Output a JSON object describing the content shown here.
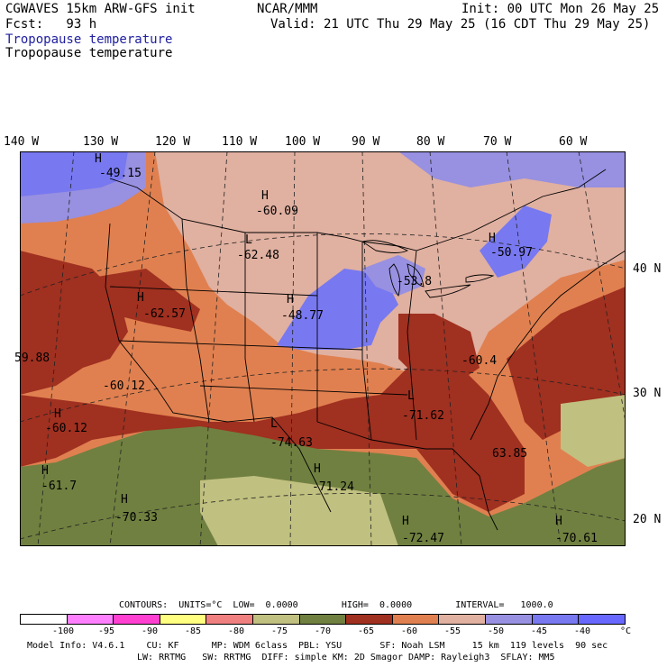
{
  "header": {
    "model": "CGWAVES 15km ARW-GFS init",
    "center": "NCAR/MMM",
    "init": "Init: 00 UTC Mon 26 May 25",
    "fcst": "Fcst:   93 h",
    "valid": "Valid: 21 UTC Thu 29 May 25 (16 CDT Thu 29 May 25)",
    "field_title_1": "Tropopause temperature",
    "field_title_2": "Tropopause temperature"
  },
  "map": {
    "lon_labels": [
      "140 W",
      "130 W",
      "120 W",
      "110 W",
      "100 W",
      "90 W",
      "80 W",
      "70 W",
      "60 W"
    ],
    "lat_labels": [
      "40 N",
      "30 N",
      "20 N"
    ],
    "extrema": [
      {
        "sym": "H",
        "value": "-60.09"
      },
      {
        "sym": "L",
        "value": "-62.48"
      },
      {
        "sym": "H",
        "value": "-50.97"
      },
      {
        "sym": "H",
        "value": "-62.57"
      },
      {
        "sym": "H",
        "value": "-48.77"
      },
      {
        "sym": "",
        "value": "-53.8"
      },
      {
        "sym": "",
        "value": "59.88"
      },
      {
        "sym": "",
        "value": "-60.12"
      },
      {
        "sym": "H",
        "value": "-60.12"
      },
      {
        "sym": "",
        "value": "-60.4"
      },
      {
        "sym": "L",
        "value": "-71.62"
      },
      {
        "sym": "L",
        "value": "-74.63"
      },
      {
        "sym": "H",
        "value": "-71.24"
      },
      {
        "sym": "",
        "value": "63.85"
      },
      {
        "sym": "H",
        "value": "-61.7"
      },
      {
        "sym": "H",
        "value": "-70.33"
      },
      {
        "sym": "H",
        "value": "-72.47"
      },
      {
        "sym": "H",
        "value": "-70.61"
      },
      {
        "sym": "H",
        "value": "-49.15"
      }
    ]
  },
  "contours": {
    "text": "CONTOURS:  UNITS=°C  LOW=  0.0000        HIGH=  0.0000        INTERVAL=   1000.0"
  },
  "colorbar": {
    "colors": [
      "#ffffff",
      "#ff80ff",
      "#ff40d0",
      "#ffff80",
      "#f08080",
      "#c0c080",
      "#708040",
      "#506030",
      "#a03020",
      "#e08050",
      "#e0b0a0",
      "#9890e0",
      "#7878f0",
      "#6868ff"
    ],
    "labels": [
      "-100",
      "-95",
      "-90",
      "-85",
      "-80",
      "-75",
      "-70",
      "-65",
      "-60",
      "-55",
      "-50",
      "-45",
      "-40",
      "°C"
    ]
  },
  "model_info": {
    "line1": "Model Info: V4.6.1    CU: KF      MP: WDM 6class  PBL: YSU       SF: Noah LSM     15 km  119 levels  90 sec",
    "line2": "LW: RRTMG   SW: RRTMG  DIFF: simple KM: 2D Smagor DAMP: Rayleigh3  SFLAY: MM5"
  }
}
